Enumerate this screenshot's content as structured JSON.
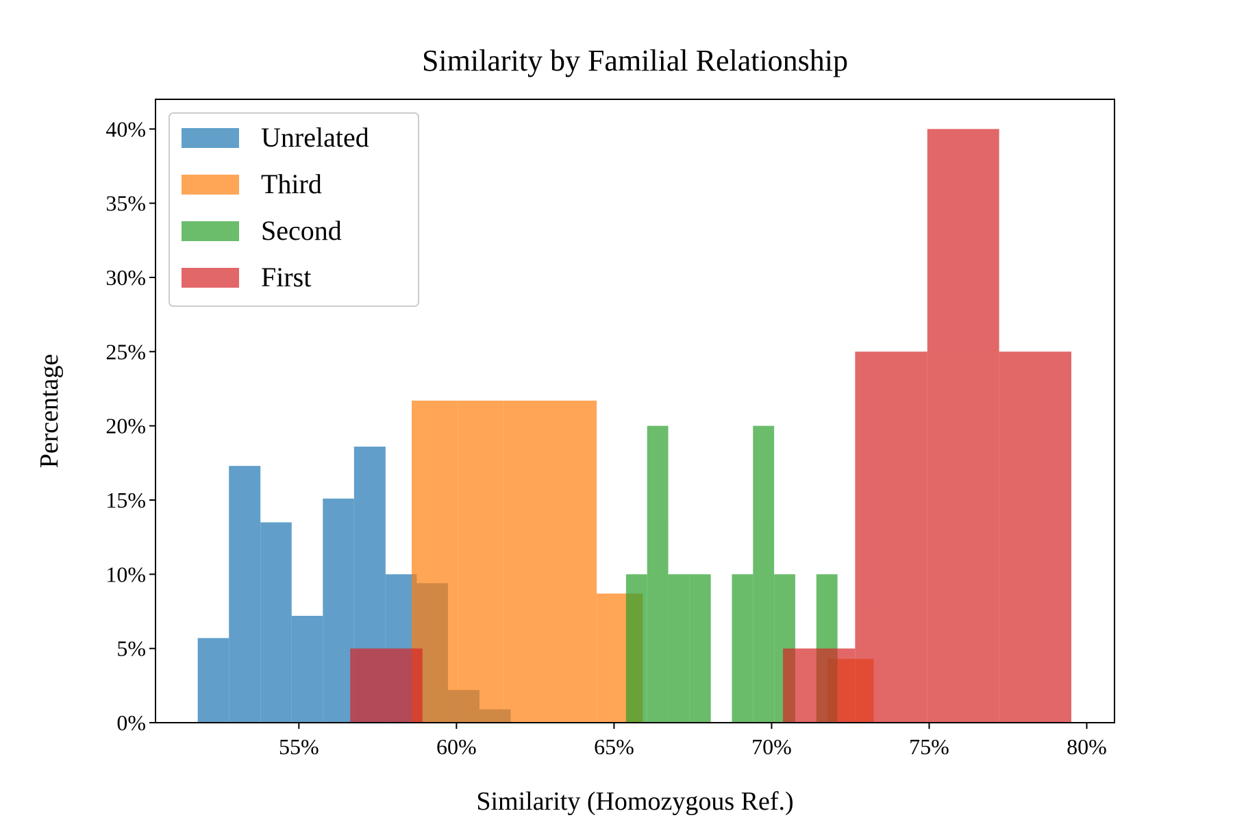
{
  "chart_data": {
    "type": "histogram",
    "title": "Similarity by Familial Relationship",
    "xlabel": "Similarity (Homozygous Ref.)",
    "ylabel": "Percentage",
    "xlim": [
      50.45,
      80.88
    ],
    "ylim": [
      0,
      42
    ],
    "xticks": [
      {
        "value": 55,
        "label": "55%"
      },
      {
        "value": 60,
        "label": "60%"
      },
      {
        "value": 65,
        "label": "65%"
      },
      {
        "value": 70,
        "label": "70%"
      },
      {
        "value": 75,
        "label": "75%"
      },
      {
        "value": 80,
        "label": "80%"
      }
    ],
    "yticks": [
      {
        "value": 0,
        "label": "0%"
      },
      {
        "value": 5,
        "label": "5%"
      },
      {
        "value": 10,
        "label": "10%"
      },
      {
        "value": 15,
        "label": "15%"
      },
      {
        "value": 20,
        "label": "20%"
      },
      {
        "value": 25,
        "label": "25%"
      },
      {
        "value": 30,
        "label": "30%"
      },
      {
        "value": 35,
        "label": "35%"
      },
      {
        "value": 40,
        "label": "40%"
      }
    ],
    "legend": "upper left",
    "opacity": 0.7,
    "series": [
      {
        "name": "Unrelated",
        "color": "#1f77b4",
        "bins": [
          51.79,
          52.78,
          53.78,
          54.77,
          55.76,
          56.75,
          57.75,
          58.74,
          59.73,
          60.73,
          61.72
        ],
        "values": [
          5.7,
          17.3,
          13.5,
          7.2,
          15.1,
          18.6,
          10.0,
          9.4,
          2.2,
          0.9
        ]
      },
      {
        "name": "Third",
        "color": "#ff7f0e",
        "bins": [
          58.58,
          60.05,
          61.51,
          62.98,
          64.45,
          65.91,
          67.38,
          68.84,
          70.31,
          71.78,
          73.24
        ],
        "values": [
          21.7,
          21.7,
          21.7,
          21.7,
          8.7,
          0,
          0,
          0,
          0,
          4.3
        ]
      },
      {
        "name": "Second",
        "color": "#2ca02c",
        "bins": [
          65.38,
          66.05,
          66.72,
          67.39,
          68.07,
          68.74,
          69.41,
          70.08,
          70.75,
          71.42,
          72.09
        ],
        "values": [
          10,
          20,
          10,
          10,
          0,
          10,
          20,
          10,
          0,
          10
        ]
      },
      {
        "name": "First",
        "color": "#d62728",
        "bins": [
          56.63,
          58.92,
          61.21,
          63.49,
          65.78,
          68.07,
          70.36,
          72.65,
          74.94,
          77.22,
          79.51
        ],
        "values": [
          5,
          0,
          0,
          0,
          0,
          0,
          5,
          25,
          40,
          25
        ]
      }
    ]
  }
}
